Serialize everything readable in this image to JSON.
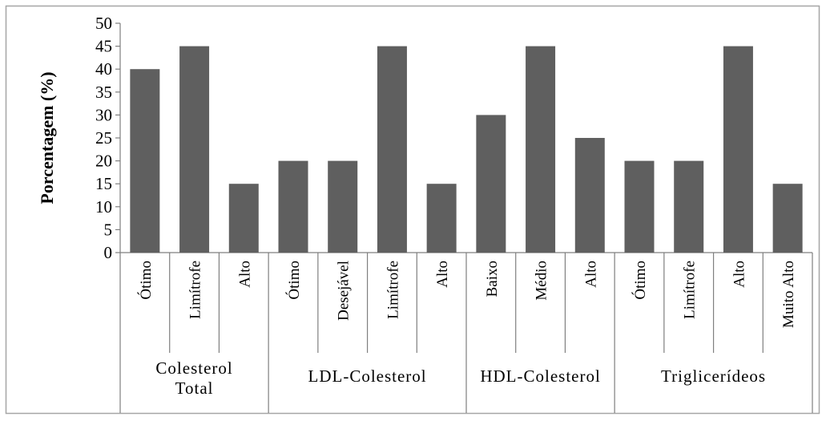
{
  "chart_data": {
    "type": "bar",
    "title": "",
    "xlabel": "",
    "ylabel": "Porcentagem (%)",
    "ylim": [
      0,
      50
    ],
    "yticks": [
      0,
      5,
      10,
      15,
      20,
      25,
      30,
      35,
      40,
      45,
      50
    ],
    "grid": false,
    "legend": "none",
    "bar_color": "#5f5f5f",
    "groups": [
      {
        "label": "Colesterol Total",
        "categories": [
          "Ótimo",
          "Limítrofe",
          "Alto"
        ],
        "values": [
          40,
          45,
          15
        ]
      },
      {
        "label": "LDL-Colesterol",
        "categories": [
          "Ótimo",
          "Desejável",
          "Limítrofe",
          "Alto"
        ],
        "values": [
          20,
          20,
          45,
          15
        ]
      },
      {
        "label": "HDL-Colesterol",
        "categories": [
          "Baixo",
          "Médio",
          "Alto"
        ],
        "values": [
          30,
          45,
          25
        ]
      },
      {
        "label": "Triglicerídeos",
        "categories": [
          "Ótimo",
          "Limítrofe",
          "Alto",
          "Muito Alto"
        ],
        "values": [
          20,
          20,
          45,
          15
        ]
      }
    ]
  }
}
